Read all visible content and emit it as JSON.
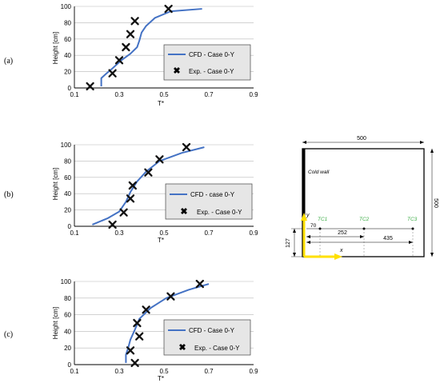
{
  "chart_data": [
    {
      "type": "line",
      "panel_label": "(a)",
      "xlabel": "T*",
      "ylabel": "Height [cm]",
      "xlim": [
        0.1,
        0.9
      ],
      "ylim": [
        0,
        100
      ],
      "xticks": [
        "0.1",
        "0.3",
        "0.5",
        "0.7",
        "0.9"
      ],
      "yticks": [
        "0",
        "20",
        "40",
        "60",
        "80",
        "100"
      ],
      "grid": "horizontal",
      "legend_position": "bottom-right",
      "series": [
        {
          "name": "CFD - Case 0-Y",
          "type": "line",
          "color": "#4472C4",
          "points": [
            [
              0.22,
              2
            ],
            [
              0.22,
              12
            ],
            [
              0.24,
              17
            ],
            [
              0.27,
              24
            ],
            [
              0.31,
              34
            ],
            [
              0.35,
              42
            ],
            [
              0.38,
              50
            ],
            [
              0.39,
              58
            ],
            [
              0.4,
              68
            ],
            [
              0.42,
              76
            ],
            [
              0.46,
              86
            ],
            [
              0.53,
              94
            ],
            [
              0.67,
              97
            ]
          ]
        },
        {
          "name": "Exp. - Case 0-Y",
          "type": "scatter",
          "marker": "x",
          "points": [
            [
              0.17,
              2
            ],
            [
              0.27,
              18
            ],
            [
              0.3,
              34
            ],
            [
              0.33,
              50
            ],
            [
              0.35,
              66
            ],
            [
              0.37,
              82
            ],
            [
              0.52,
              97
            ]
          ]
        }
      ]
    },
    {
      "type": "line",
      "panel_label": "(b)",
      "xlabel": "T*",
      "ylabel": "Height [cm]",
      "xlim": [
        0.1,
        0.9
      ],
      "ylim": [
        0,
        100
      ],
      "xticks": [
        "0.1",
        "0.3",
        "0.5",
        "0.7",
        "0.9"
      ],
      "yticks": [
        "0",
        "20",
        "40",
        "60",
        "80",
        "100"
      ],
      "grid": "horizontal",
      "legend_position": "bottom-right",
      "series": [
        {
          "name": "CFD - case 0-Y",
          "type": "line",
          "color": "#4472C4",
          "points": [
            [
              0.18,
              2
            ],
            [
              0.25,
              10
            ],
            [
              0.3,
              18
            ],
            [
              0.33,
              30
            ],
            [
              0.35,
              42
            ],
            [
              0.38,
              55
            ],
            [
              0.42,
              67
            ],
            [
              0.48,
              80
            ],
            [
              0.58,
              90
            ],
            [
              0.68,
              97
            ]
          ]
        },
        {
          "name": "Exp. - Case 0-Y",
          "type": "scatter",
          "marker": "x",
          "points": [
            [
              0.27,
              2
            ],
            [
              0.32,
              17
            ],
            [
              0.35,
              34
            ],
            [
              0.36,
              50
            ],
            [
              0.43,
              66
            ],
            [
              0.48,
              82
            ],
            [
              0.6,
              97
            ]
          ]
        }
      ]
    },
    {
      "type": "line",
      "panel_label": "(c)",
      "xlabel": "T*",
      "ylabel": "Height [cm]",
      "xlim": [
        0.1,
        0.9
      ],
      "ylim": [
        0,
        100
      ],
      "xticks": [
        "0.1",
        "0.3",
        "0.5",
        "0.7",
        "0.9"
      ],
      "yticks": [
        "0",
        "20",
        "40",
        "60",
        "80",
        "100"
      ],
      "grid": "horizontal",
      "legend_position": "bottom-right",
      "series": [
        {
          "name": "CFD - Case 0-Y",
          "type": "line",
          "color": "#4472C4",
          "points": [
            [
              0.33,
              2
            ],
            [
              0.33,
              12
            ],
            [
              0.34,
              20
            ],
            [
              0.35,
              30
            ],
            [
              0.37,
              42
            ],
            [
              0.39,
              55
            ],
            [
              0.44,
              68
            ],
            [
              0.51,
              80
            ],
            [
              0.61,
              90
            ],
            [
              0.7,
              97
            ]
          ]
        },
        {
          "name": "Exp. - Case 0-Y",
          "type": "scatter",
          "marker": "x",
          "points": [
            [
              0.37,
              2
            ],
            [
              0.35,
              17
            ],
            [
              0.39,
              34
            ],
            [
              0.38,
              50
            ],
            [
              0.42,
              66
            ],
            [
              0.53,
              82
            ],
            [
              0.66,
              97
            ]
          ]
        }
      ]
    }
  ],
  "diagram": {
    "top_dim": "500",
    "side_dim": "500",
    "cold_wall_label": "Cold wall",
    "y_axis_label": "y",
    "x_axis_label": "x",
    "tc_labels": [
      "TC1",
      "TC2",
      "TC3"
    ],
    "dim_127": "127",
    "dim_70": "70",
    "dim_252": "252",
    "dim_435": "435",
    "tc_color": "#3FAE49",
    "axis_color": "#FFE000",
    "wall_color": "#000000"
  }
}
